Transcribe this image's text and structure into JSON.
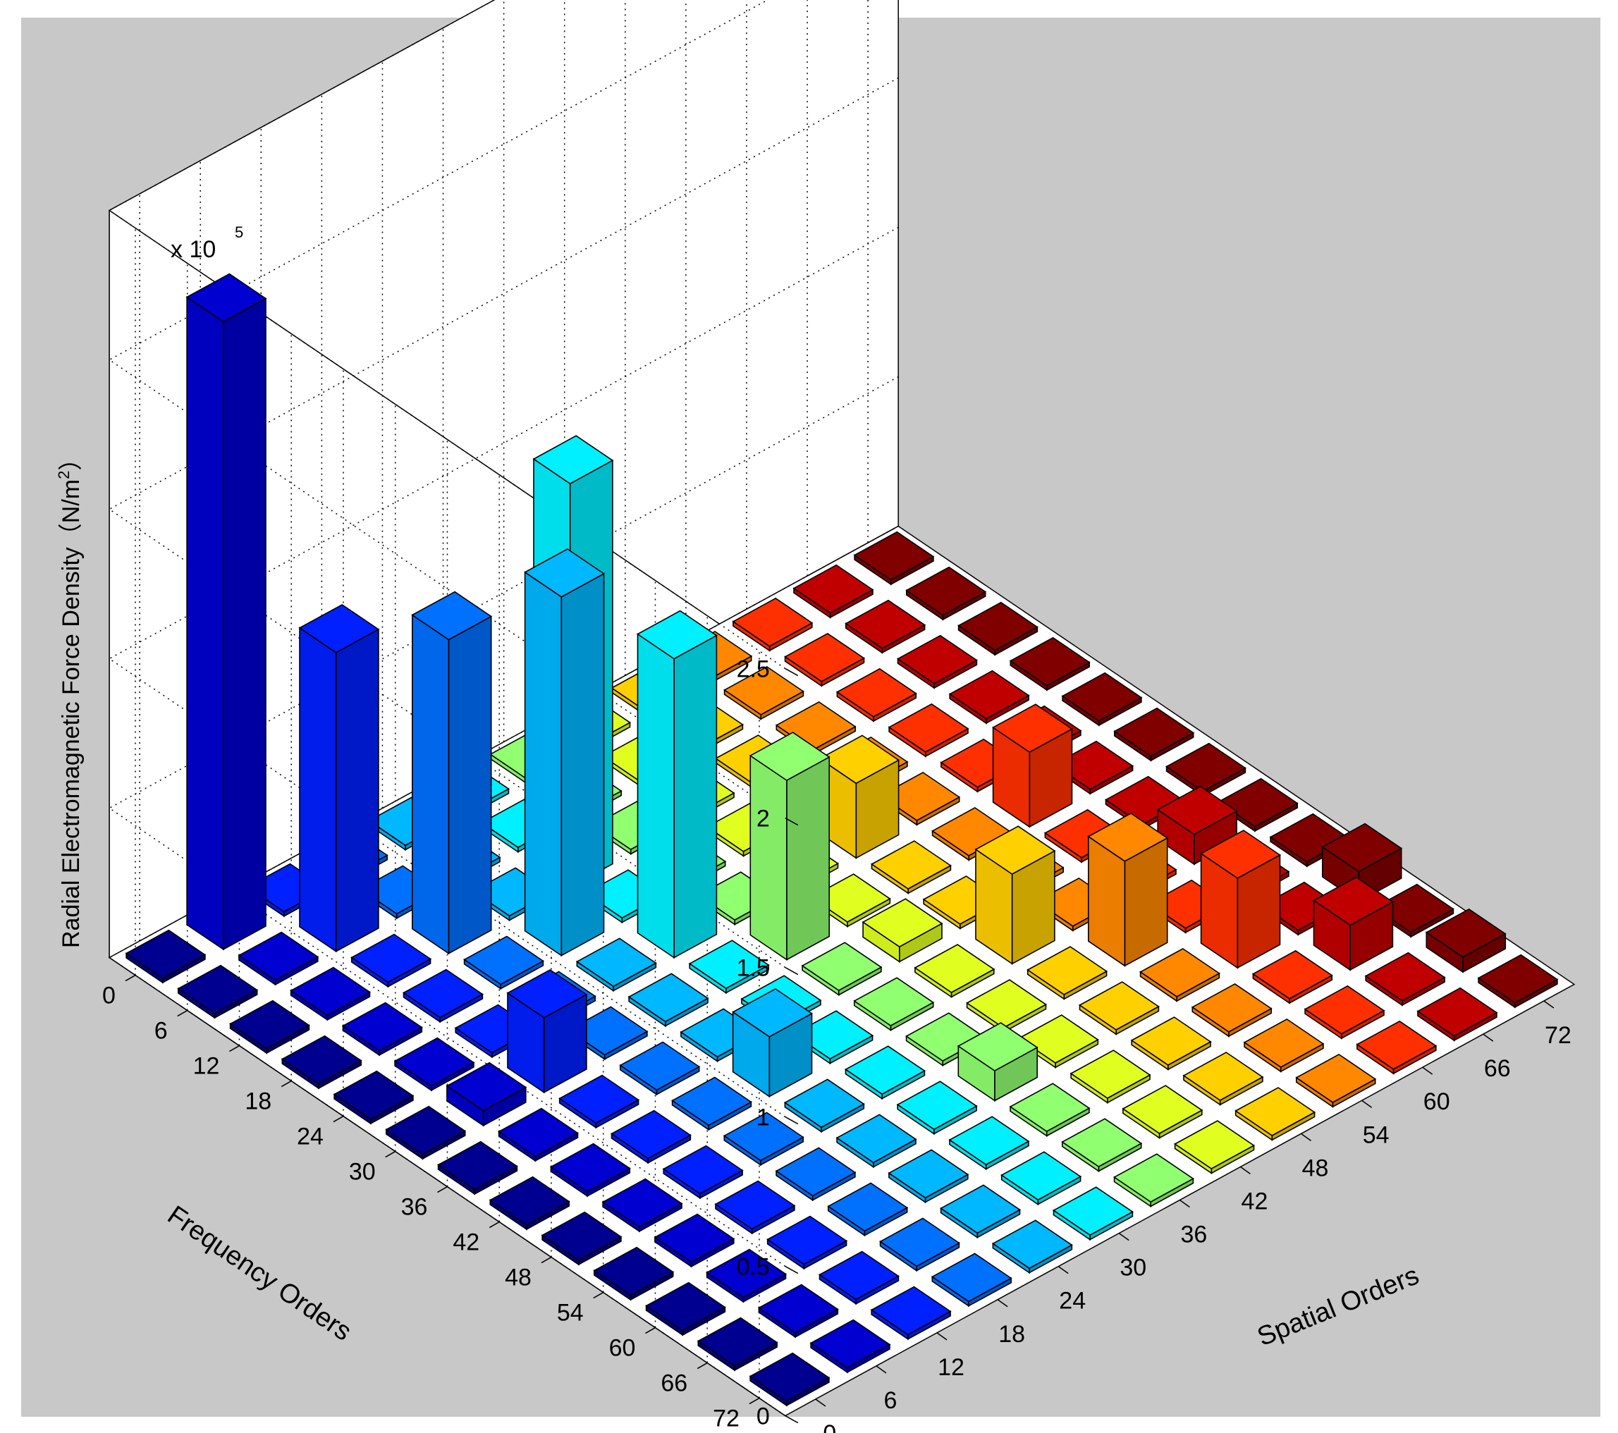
{
  "chart_data": {
    "type": "bar3d",
    "title": "",
    "zlabel": "Radial Electromagnetic Force Density（N/m²）",
    "zlabel_main": "Radial Electromagnetic Force Density（N/m",
    "zlabel_sup": "2",
    "zlabel_close": "）",
    "xlabel": "Spatial Orders",
    "ylabel": "Frequency Orders",
    "z_exponent_base": "x 10",
    "z_exponent_power": "5",
    "zlim": [
      0,
      2.5
    ],
    "z_ticks": [
      "0",
      "0.5",
      "1",
      "1.5",
      "2",
      "2.5"
    ],
    "z_tick_values": [
      0,
      0.5,
      1,
      1.5,
      2,
      2.5
    ],
    "spatial_orders": [
      "0",
      "6",
      "12",
      "18",
      "24",
      "30",
      "36",
      "42",
      "48",
      "54",
      "60",
      "66",
      "72"
    ],
    "frequency_orders": [
      "0",
      "6",
      "12",
      "18",
      "24",
      "30",
      "36",
      "42",
      "48",
      "54",
      "60",
      "66",
      "72"
    ],
    "grid": true,
    "colormap": "jet (by spatial order)",
    "colors": {
      "background": "#c8c8c8",
      "axes_bg": "#ffffff",
      "grid": "#000000",
      "jet": [
        "#000090",
        "#0000d0",
        "#0020ff",
        "#0070ff",
        "#00b8ff",
        "#00f0ff",
        "#40ffbe",
        "#90ff70",
        "#e0ff20",
        "#ffd000",
        "#ff8800",
        "#ff3000",
        "#c00000",
        "#800000"
      ]
    },
    "bars": [
      {
        "spatial": 6,
        "frequency": 0,
        "value": 2.1
      },
      {
        "spatial": 12,
        "frequency": 6,
        "value": 1.0
      },
      {
        "spatial": 18,
        "frequency": 12,
        "value": 1.05
      },
      {
        "spatial": 24,
        "frequency": 18,
        "value": 1.2
      },
      {
        "spatial": 30,
        "frequency": 24,
        "value": 1.0
      },
      {
        "spatial": 36,
        "frequency": 30,
        "value": 0.6
      },
      {
        "spatial": 42,
        "frequency": 36,
        "value": 0.05
      },
      {
        "spatial": 48,
        "frequency": 42,
        "value": 0.3
      },
      {
        "spatial": 54,
        "frequency": 48,
        "value": 0.35
      },
      {
        "spatial": 60,
        "frequency": 54,
        "value": 0.3
      },
      {
        "spatial": 66,
        "frequency": 60,
        "value": 0.15
      },
      {
        "spatial": 72,
        "frequency": 66,
        "value": 0.05
      },
      {
        "spatial": 30,
        "frequency": 12,
        "value": 1.35
      },
      {
        "spatial": 48,
        "frequency": 24,
        "value": 0.25
      },
      {
        "spatial": 60,
        "frequency": 30,
        "value": 0.25
      },
      {
        "spatial": 66,
        "frequency": 42,
        "value": 0.1
      },
      {
        "spatial": 72,
        "frequency": 54,
        "value": 0.1
      },
      {
        "spatial": 12,
        "frequency": 30,
        "value": 0.25
      },
      {
        "spatial": 24,
        "frequency": 42,
        "value": 0.2
      },
      {
        "spatial": 36,
        "frequency": 54,
        "value": 0.1
      },
      {
        "spatial": 6,
        "frequency": 30,
        "value": 0.05
      }
    ]
  }
}
